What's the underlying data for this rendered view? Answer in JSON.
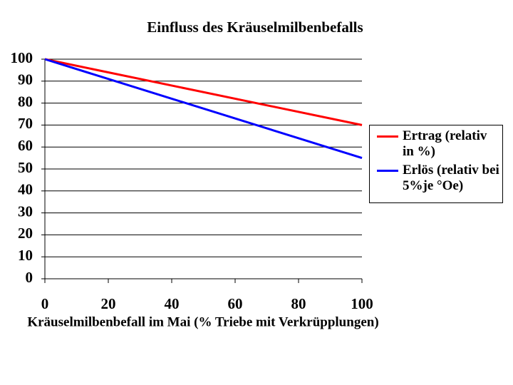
{
  "chart_data": {
    "type": "line",
    "title": "Einfluss des Kräuselmilbenbefalls",
    "x_label": "Kräuselmilbenbefall im Mai (% Triebe mit Verkrüpplungen)",
    "x": [
      0,
      100
    ],
    "series": [
      {
        "name": "Ertrag (relativ in %)",
        "color": "#ff0000",
        "values": [
          100,
          70
        ]
      },
      {
        "name": "Erlös (relativ bei 5%je °Oe)",
        "color": "#0000ff",
        "values": [
          100,
          55
        ]
      }
    ],
    "xlim": [
      0,
      100
    ],
    "xticks": [
      0,
      20,
      40,
      60,
      80,
      100
    ],
    "ylim": [
      0,
      100
    ],
    "yticks": [
      0,
      10,
      20,
      30,
      40,
      50,
      60,
      70,
      80,
      90,
      100
    ],
    "grid": true,
    "legend": "right"
  }
}
